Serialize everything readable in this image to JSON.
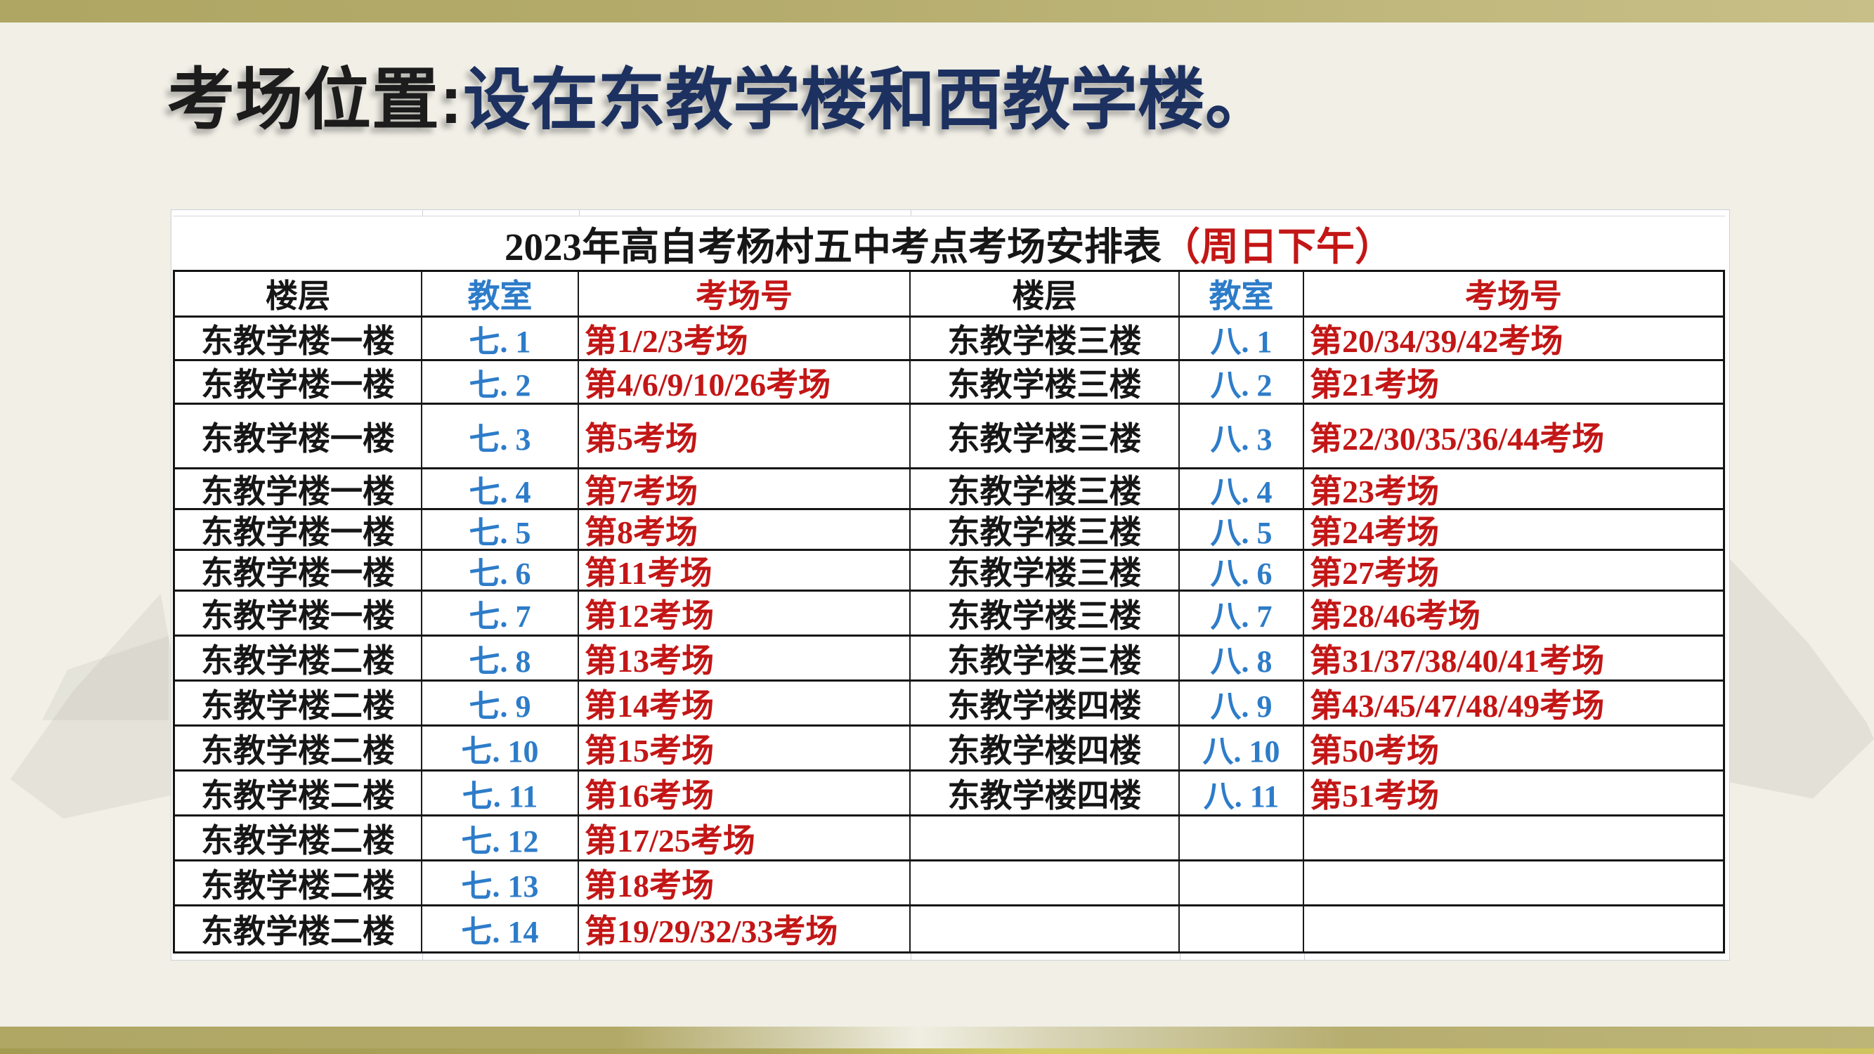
{
  "heading": {
    "prefix": "考场位置:",
    "rest": "设在东教学楼和西教学楼。"
  },
  "table": {
    "title_black": "2023年高自考杨村五中考点考场安排表",
    "title_red": "（周日下午）",
    "headers": [
      "楼层",
      "教室",
      "考场号",
      "楼层",
      "教室",
      "考场号"
    ],
    "rows": [
      {
        "l_floor": "东教学楼一楼",
        "l_room": "七. 1",
        "l_halls": "第1/2/3考场",
        "r_floor": "东教学楼三楼",
        "r_room": "八. 1",
        "r_halls": "第20/34/39/42考场"
      },
      {
        "l_floor": "东教学楼一楼",
        "l_room": "七. 2",
        "l_halls": "第4/6/9/10/26考场",
        "r_floor": "东教学楼三楼",
        "r_room": "八. 2",
        "r_halls": "第21考场"
      },
      {
        "l_floor": "东教学楼一楼",
        "l_room": "七. 3",
        "l_halls": "第5考场",
        "r_floor": "东教学楼三楼",
        "r_room": "八. 3",
        "r_halls": "第22/30/35/36/44考场"
      },
      {
        "l_floor": "东教学楼一楼",
        "l_room": "七. 4",
        "l_halls": "第7考场",
        "r_floor": "东教学楼三楼",
        "r_room": "八. 4",
        "r_halls": "第23考场"
      },
      {
        "l_floor": "东教学楼一楼",
        "l_room": "七. 5",
        "l_halls": "第8考场",
        "r_floor": "东教学楼三楼",
        "r_room": "八. 5",
        "r_halls": "第24考场"
      },
      {
        "l_floor": "东教学楼一楼",
        "l_room": "七. 6",
        "l_halls": "第11考场",
        "r_floor": "东教学楼三楼",
        "r_room": "八. 6",
        "r_halls": "第27考场"
      },
      {
        "l_floor": "东教学楼一楼",
        "l_room": "七. 7",
        "l_halls": "第12考场",
        "r_floor": "东教学楼三楼",
        "r_room": "八. 7",
        "r_halls": "第28/46考场"
      },
      {
        "l_floor": "东教学楼二楼",
        "l_room": "七. 8",
        "l_halls": "第13考场",
        "r_floor": "东教学楼三楼",
        "r_room": "八. 8",
        "r_halls": "第31/37/38/40/41考场"
      },
      {
        "l_floor": "东教学楼二楼",
        "l_room": "七. 9",
        "l_halls": "第14考场",
        "r_floor": "东教学楼四楼",
        "r_room": "八. 9",
        "r_halls": "第43/45/47/48/49考场"
      },
      {
        "l_floor": "东教学楼二楼",
        "l_room": "七. 10",
        "l_halls": "第15考场",
        "r_floor": "东教学楼四楼",
        "r_room": "八. 10",
        "r_halls": "第50考场"
      },
      {
        "l_floor": "东教学楼二楼",
        "l_room": "七. 11",
        "l_halls": "第16考场",
        "r_floor": "东教学楼四楼",
        "r_room": "八. 11",
        "r_halls": "第51考场"
      },
      {
        "l_floor": "东教学楼二楼",
        "l_room": "七. 12",
        "l_halls": "第17/25考场",
        "r_floor": "",
        "r_room": "",
        "r_halls": ""
      },
      {
        "l_floor": "东教学楼二楼",
        "l_room": "七. 13",
        "l_halls": "第18考场",
        "r_floor": "",
        "r_room": "",
        "r_halls": ""
      },
      {
        "l_floor": "东教学楼二楼",
        "l_room": "七. 14",
        "l_halls": "第19/29/32/33考场",
        "r_floor": "",
        "r_room": "",
        "r_halls": ""
      }
    ]
  },
  "colors": {
    "hall_red": "#c31616",
    "room_blue": "#2d7cc9",
    "heading_navy": "#1d3160",
    "theme_olive": "#b3aa6a",
    "background_beige": "#f1efe6"
  }
}
